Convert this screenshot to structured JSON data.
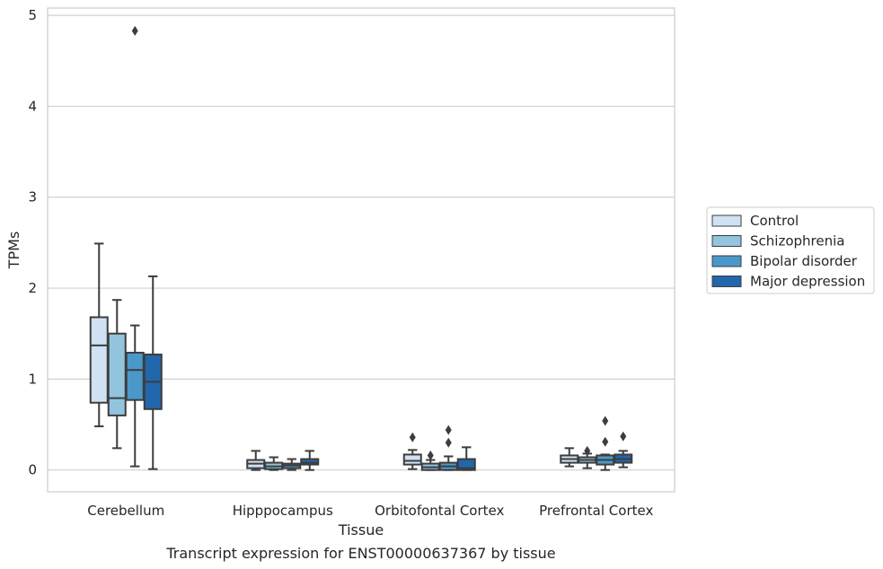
{
  "chart_data": {
    "type": "boxplot",
    "xlabel": "Tissue",
    "ylabel": "TPMs",
    "caption": "Transcript expression for ENST00000637367 by tissue",
    "ylim": [
      -0.24,
      5.08
    ],
    "yticks": [
      "0",
      "1",
      "2",
      "3",
      "4",
      "5"
    ],
    "grid": "horizontal",
    "legend_position": "right",
    "categories": [
      "Cerebellum",
      "Hipppocampus",
      "Orbitofontal Cortex",
      "Prefrontal Cortex"
    ],
    "series": [
      {
        "name": "Control",
        "color": "#cfe1f2",
        "boxes": [
          {
            "whislo": 0.48,
            "q1": 0.74,
            "med": 1.37,
            "q3": 1.68,
            "whishi": 2.49,
            "fliers": []
          },
          {
            "whislo": 0.0,
            "q1": 0.02,
            "med": 0.07,
            "q3": 0.11,
            "whishi": 0.21,
            "fliers": []
          },
          {
            "whislo": 0.01,
            "q1": 0.06,
            "med": 0.1,
            "q3": 0.17,
            "whishi": 0.22,
            "fliers": [
              0.36
            ]
          },
          {
            "whislo": 0.04,
            "q1": 0.08,
            "med": 0.12,
            "q3": 0.16,
            "whishi": 0.24,
            "fliers": []
          }
        ]
      },
      {
        "name": "Schizophrenia",
        "color": "#93c4de",
        "boxes": [
          {
            "whislo": 0.24,
            "q1": 0.6,
            "med": 0.79,
            "q3": 1.5,
            "whishi": 1.87,
            "fliers": []
          },
          {
            "whislo": 0.0,
            "q1": 0.01,
            "med": 0.04,
            "q3": 0.08,
            "whishi": 0.14,
            "fliers": []
          },
          {
            "whislo": 0.0,
            "q1": 0.0,
            "med": 0.03,
            "q3": 0.07,
            "whishi": 0.11,
            "fliers": [
              0.16
            ]
          },
          {
            "whislo": 0.02,
            "q1": 0.08,
            "med": 0.11,
            "q3": 0.14,
            "whishi": 0.18,
            "fliers": [
              0.21
            ]
          }
        ]
      },
      {
        "name": "Bipolar disorder",
        "color": "#4a98c9",
        "boxes": [
          {
            "whislo": 0.04,
            "q1": 0.77,
            "med": 1.1,
            "q3": 1.29,
            "whishi": 1.59,
            "fliers": [
              4.83
            ]
          },
          {
            "whislo": 0.0,
            "q1": 0.02,
            "med": 0.05,
            "q3": 0.07,
            "whishi": 0.12,
            "fliers": []
          },
          {
            "whislo": 0.0,
            "q1": 0.0,
            "med": 0.04,
            "q3": 0.08,
            "whishi": 0.15,
            "fliers": [
              0.3,
              0.44
            ]
          },
          {
            "whislo": 0.0,
            "q1": 0.06,
            "med": 0.11,
            "q3": 0.16,
            "whishi": 0.17,
            "fliers": [
              0.31,
              0.54
            ]
          }
        ]
      },
      {
        "name": "Major depression",
        "color": "#2266ac",
        "boxes": [
          {
            "whislo": 0.01,
            "q1": 0.67,
            "med": 0.97,
            "q3": 1.27,
            "whishi": 2.13,
            "fliers": []
          },
          {
            "whislo": 0.0,
            "q1": 0.06,
            "med": 0.08,
            "q3": 0.12,
            "whishi": 0.21,
            "fliers": []
          },
          {
            "whislo": 0.0,
            "q1": 0.0,
            "med": 0.02,
            "q3": 0.12,
            "whishi": 0.25,
            "fliers": []
          },
          {
            "whislo": 0.03,
            "q1": 0.08,
            "med": 0.12,
            "q3": 0.17,
            "whishi": 0.21,
            "fliers": [
              0.37
            ]
          }
        ]
      }
    ]
  }
}
